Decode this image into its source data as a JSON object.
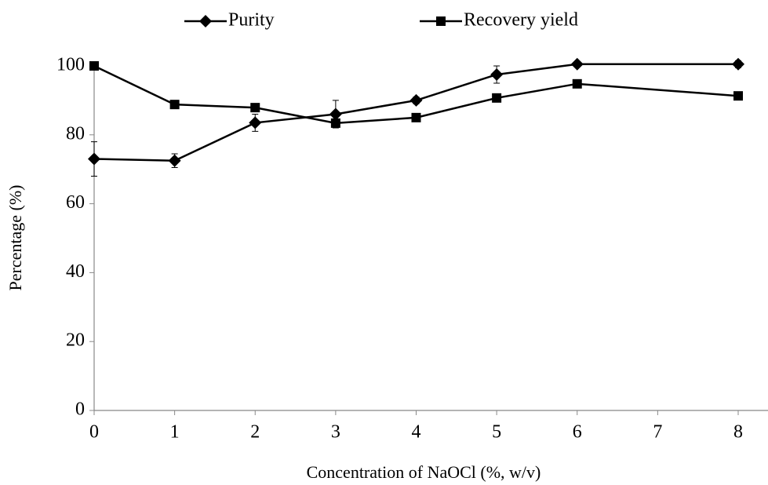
{
  "chart_data": {
    "type": "line",
    "xlabel": "Concentration of NaOCl (%, w/v)",
    "ylabel": "Percentage (%)",
    "xlim": [
      0,
      8
    ],
    "xticks": [
      0,
      1,
      2,
      3,
      4,
      5,
      6,
      7,
      8
    ],
    "ylim": [
      0,
      100
    ],
    "yticks": [
      0,
      20,
      40,
      60,
      80,
      100
    ],
    "grid": false,
    "legend": "top",
    "series": [
      {
        "name": "Purity",
        "color": "#000000",
        "marker": "diamond",
        "x": [
          0,
          1,
          2,
          3,
          4,
          5,
          6,
          8
        ],
        "values": [
          73,
          72.5,
          83.5,
          86,
          90,
          97.5,
          100.5,
          100.5
        ],
        "errors": [
          5,
          2,
          2.5,
          4,
          1,
          2.5,
          0.5,
          1
        ]
      },
      {
        "name": "Recovery yield",
        "color": "#000000",
        "marker": "square",
        "x": [
          0,
          1,
          2,
          3,
          4,
          5,
          6,
          8
        ],
        "values": [
          100,
          88.8,
          87.9,
          83.4,
          85,
          90.7,
          94.8,
          91.3
        ]
      }
    ]
  }
}
